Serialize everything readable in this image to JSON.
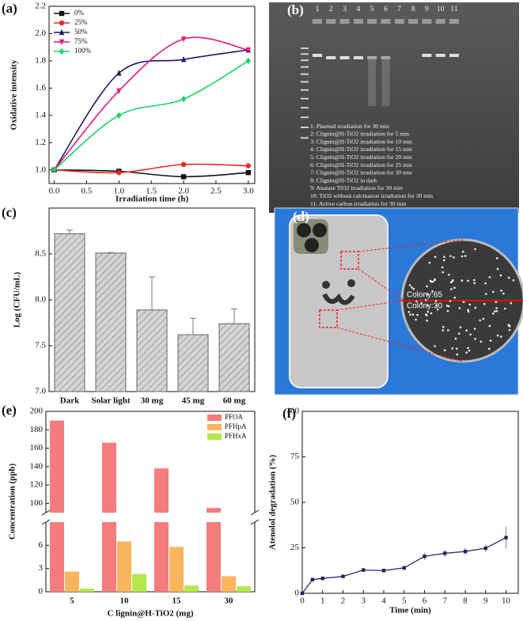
{
  "chart_data": [
    {
      "type": "line",
      "label": "(a)",
      "xlabel": "Irradiation time (h)",
      "ylabel": "Oxidative intensity",
      "x": [
        0,
        1,
        2,
        3
      ],
      "series": [
        {
          "name": "0%",
          "color": "#111111",
          "marker": "square",
          "values": [
            1.0,
            0.99,
            0.95,
            0.98
          ]
        },
        {
          "name": "25%",
          "color": "#e8262a",
          "marker": "circle",
          "values": [
            1.0,
            0.98,
            1.04,
            1.03
          ]
        },
        {
          "name": "50%",
          "color": "#1c1a66",
          "marker": "triangle",
          "values": [
            1.0,
            1.71,
            1.81,
            1.88
          ]
        },
        {
          "name": "75%",
          "color": "#e6197c",
          "marker": "triangle-down",
          "values": [
            1.0,
            1.58,
            1.96,
            1.88
          ]
        },
        {
          "name": "100%",
          "color": "#1fcf6b",
          "marker": "diamond",
          "values": [
            1.0,
            1.4,
            1.52,
            1.8
          ]
        }
      ],
      "xlim": [
        -0.08,
        3.1
      ],
      "ylim": [
        0.9,
        2.2
      ],
      "xticks": [
        {
          "value": 0,
          "label": "0.0"
        },
        0.5,
        {
          "value": 1,
          "label": "1.0"
        },
        1.5,
        {
          "value": 2,
          "label": "2.0"
        },
        2.5,
        {
          "value": 3,
          "label": "3.0"
        }
      ],
      "yticks": [
        {
          "value": 1,
          "label": "1.0"
        },
        1.2,
        1.4,
        1.6,
        1.8,
        {
          "value": 2,
          "label": "2.0"
        },
        2.2
      ],
      "legend": "upper left"
    },
    {
      "type": "bar",
      "label": "(c)",
      "ylabel": "Log (CFU/mL)",
      "categories": [
        "Dark",
        "Solar light",
        "30 mg",
        "45 mg",
        "60 mg"
      ],
      "values": [
        8.72,
        8.51,
        7.89,
        7.62,
        7.74
      ],
      "errors": [
        0.04,
        0.005,
        0.36,
        0.18,
        0.16
      ],
      "color": "#c8c8c8",
      "ylim": [
        7.0,
        9.0
      ],
      "yticks": [
        {
          "value": 7,
          "label": "7.0"
        },
        7.5,
        {
          "value": 8,
          "label": "8.0"
        },
        8.5
      ]
    },
    {
      "type": "broken-bar",
      "label": "(e)",
      "ylabel": "Concentration (ppb)",
      "xlabel": "C lignin@H-TiO2 (mg)",
      "categories": [
        "5",
        "10",
        "15",
        "30"
      ],
      "series": [
        {
          "name": "PFOA",
          "color": "#f47c7c",
          "values": [
            190,
            166,
            138,
            95
          ]
        },
        {
          "name": "PFHpA",
          "color": "#f8b55c",
          "values": [
            2.6,
            6.5,
            5.8,
            2.0
          ]
        },
        {
          "name": "PFHxA",
          "color": "#b3e84c",
          "values": [
            0.4,
            2.3,
            0.8,
            0.7
          ]
        }
      ],
      "ylim_lower": [
        0,
        9
      ],
      "yticks_lower": [
        0,
        3,
        6
      ],
      "ylim_upper": [
        90,
        200
      ],
      "yticks_upper": [
        100,
        120,
        140,
        160,
        180,
        200
      ],
      "legend": "upper right"
    },
    {
      "type": "errorline",
      "label": "(f)",
      "xlabel": "Time (min)",
      "ylabel": "Atenolol degradation (%)",
      "x": [
        0,
        0.5,
        1,
        2,
        3,
        4,
        5,
        6,
        7,
        8,
        9,
        10
      ],
      "values": [
        0,
        7.5,
        8.2,
        9.3,
        12.8,
        12.5,
        14.0,
        20.3,
        22.0,
        23.0,
        24.8,
        30.6
      ],
      "errors": [
        0,
        0.6,
        0.6,
        0.6,
        0.6,
        0.6,
        0.8,
        2.0,
        2.0,
        2.0,
        2.0,
        6.0
      ],
      "color": "#1c2260",
      "xlim": [
        0,
        10.6
      ],
      "ylim": [
        0,
        100
      ],
      "xticks": [
        0,
        1,
        2,
        3,
        4,
        5,
        6,
        7,
        8,
        9,
        10
      ],
      "yticks": [
        0,
        25,
        50,
        75,
        100
      ]
    }
  ],
  "gel": {
    "label": "(b)",
    "lanes": [
      "1",
      "2",
      "3",
      "4",
      "5",
      "6",
      "7",
      "8",
      "9",
      "10",
      "11"
    ],
    "legend": [
      "1: Plasmid  irradiation for 30 min",
      "2: Clignin@H-TiO2 irradiation for 5 min",
      "3: Clignin@H-TiO2 irradiation for 10 min",
      "4: Clignin@H-TiO2 irradiation for 15 min",
      "5: Clignin@H-TiO2 irradiation for 20 min",
      "6: Clignin@H-TiO2 irradiation for 25 min",
      "7: Clignin@H-TiO2 irradiation for 30 min",
      "8: Clignin@H-TiO2 in dark",
      "9: Anatase TiO2 irradiation for 30 min",
      "10: TiO2 without calcination irradiation for 30 min",
      "11: Active carbon irradiation for 30 min"
    ]
  },
  "photo": {
    "label": "(d)",
    "texts": [
      "Colony:65",
      "Colony:30"
    ]
  }
}
